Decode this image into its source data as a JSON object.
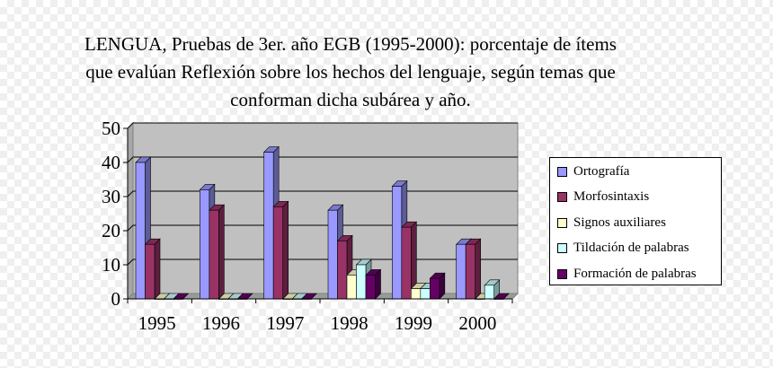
{
  "title_lines": [
    "LENGUA, Pruebas de 3er. año EGB (1995-2000): porcentaje de ítems",
    "que evalúan Reflexión sobre los hechos del lenguaje,  según temas que",
    "conforman dicha subárea y año."
  ],
  "chart_data": {
    "type": "bar",
    "variant": "3d-clustered",
    "categories": [
      "1995",
      "1996",
      "1997",
      "1998",
      "1999",
      "2000"
    ],
    "series": [
      {
        "name": "Ortografía",
        "color": "#9999ff",
        "values": [
          40,
          32,
          43,
          26,
          33,
          16
        ]
      },
      {
        "name": "Morfosintaxis",
        "color": "#993366",
        "values": [
          16,
          26,
          27,
          17,
          21,
          16
        ]
      },
      {
        "name": "Signos auxiliares",
        "color": "#ffffcc",
        "values": [
          0,
          0,
          0,
          7,
          3,
          0
        ]
      },
      {
        "name": "Tildación de palabras",
        "color": "#ccffff",
        "values": [
          0,
          0,
          0,
          10,
          3,
          4
        ]
      },
      {
        "name": "Formación de palabras",
        "color": "#660066",
        "values": [
          0,
          0,
          0,
          7,
          6,
          0
        ]
      }
    ],
    "ylim": [
      0,
      50
    ],
    "yticks": [
      0,
      10,
      20,
      30,
      40,
      50
    ],
    "grid": true,
    "plot_background": "#c0c0c0",
    "legend_position": "right"
  }
}
